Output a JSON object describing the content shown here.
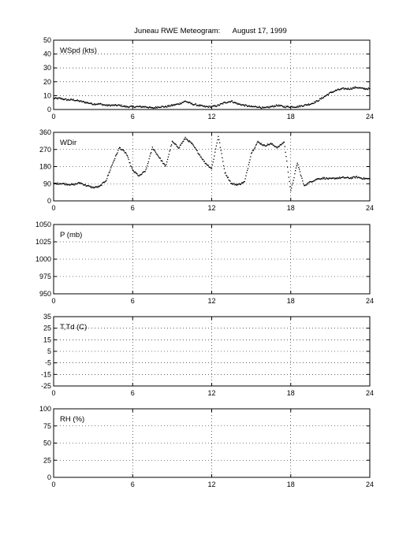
{
  "title": "Juneau RWE Meteogram:      August 17, 1999",
  "chart_data": [
    {
      "type": "scatter",
      "label": "WSpd (kts)",
      "xlim": [
        0,
        24
      ],
      "ylim": [
        0,
        50
      ],
      "xticks": [
        "0",
        "6",
        "12",
        "18",
        "24"
      ],
      "yticks": [
        "0",
        "10",
        "20",
        "30",
        "40",
        "50"
      ],
      "grid": true,
      "series": [
        {
          "x": [
            0,
            0.5,
            1,
            1.5,
            2,
            2.5,
            3,
            3.5,
            4,
            4.5,
            5,
            5.5,
            6,
            6.5,
            7,
            7.5,
            8,
            8.5,
            9,
            9.5,
            10,
            10.5,
            11,
            11.5,
            12,
            12.5,
            13,
            13.5,
            14,
            14.5,
            15,
            15.5,
            16,
            16.5,
            17,
            17.5,
            18,
            18.5,
            19,
            19.5,
            20,
            20.5,
            21,
            21.5,
            22,
            22.5,
            23,
            23.5,
            24
          ],
          "y": [
            8,
            8,
            7,
            7,
            6,
            5,
            4,
            4,
            3,
            3,
            3,
            2,
            2,
            2,
            2,
            1,
            2,
            2,
            3,
            4,
            6,
            4,
            3,
            2,
            2,
            3,
            5,
            6,
            4,
            3,
            2,
            2,
            1,
            2,
            3,
            2,
            2,
            2,
            3,
            4,
            6,
            9,
            12,
            14,
            15,
            15,
            16,
            15,
            15
          ]
        }
      ]
    },
    {
      "type": "scatter",
      "label": "WDir",
      "xlim": [
        0,
        24
      ],
      "ylim": [
        0,
        360
      ],
      "xticks": [
        "0",
        "6",
        "12",
        "18",
        "24"
      ],
      "yticks": [
        "0",
        "90",
        "180",
        "270",
        "360"
      ],
      "grid": true,
      "series": [
        {
          "x": [
            0,
            0.5,
            1,
            1.5,
            2,
            2.5,
            3,
            3.5,
            4,
            4.5,
            5,
            5.5,
            6,
            6.5,
            7,
            7.5,
            8,
            8.5,
            9,
            9.5,
            10,
            10.5,
            11,
            11.5,
            12,
            12.5,
            13,
            13.5,
            14,
            14.5,
            15,
            15.5,
            16,
            16.5,
            17,
            17.5,
            18,
            18.5,
            19,
            19.5,
            20,
            20.5,
            21,
            21.5,
            22,
            22.5,
            23,
            23.5,
            24
          ],
          "y": [
            90,
            92,
            88,
            85,
            95,
            80,
            70,
            75,
            110,
            200,
            280,
            250,
            160,
            130,
            160,
            280,
            230,
            180,
            310,
            280,
            330,
            300,
            250,
            200,
            170,
            340,
            150,
            90,
            85,
            100,
            250,
            310,
            290,
            300,
            280,
            310,
            50,
            200,
            80,
            100,
            115,
            120,
            115,
            120,
            122,
            120,
            125,
            118,
            115
          ]
        }
      ]
    },
    {
      "type": "scatter",
      "label": "P (mb)",
      "xlim": [
        0,
        24
      ],
      "ylim": [
        950,
        1050
      ],
      "xticks": [
        "0",
        "6",
        "12",
        "18",
        "24"
      ],
      "yticks": [
        "950",
        "975",
        "1000",
        "1025",
        "1050"
      ],
      "grid": true,
      "series": []
    },
    {
      "type": "scatter",
      "label": "T,Td (C)",
      "xlim": [
        0,
        24
      ],
      "ylim": [
        -25,
        35
      ],
      "xticks": [
        "0",
        "6",
        "12",
        "18",
        "24"
      ],
      "yticks": [
        "-25",
        "-15",
        "-5",
        "5",
        "15",
        "25",
        "35"
      ],
      "grid": true,
      "series": []
    },
    {
      "type": "scatter",
      "label": "RH (%)",
      "xlim": [
        0,
        24
      ],
      "ylim": [
        0,
        100
      ],
      "xticks": [
        "0",
        "6",
        "12",
        "18",
        "24"
      ],
      "yticks": [
        "0",
        "25",
        "50",
        "75",
        "100"
      ],
      "grid": true,
      "series": []
    }
  ]
}
